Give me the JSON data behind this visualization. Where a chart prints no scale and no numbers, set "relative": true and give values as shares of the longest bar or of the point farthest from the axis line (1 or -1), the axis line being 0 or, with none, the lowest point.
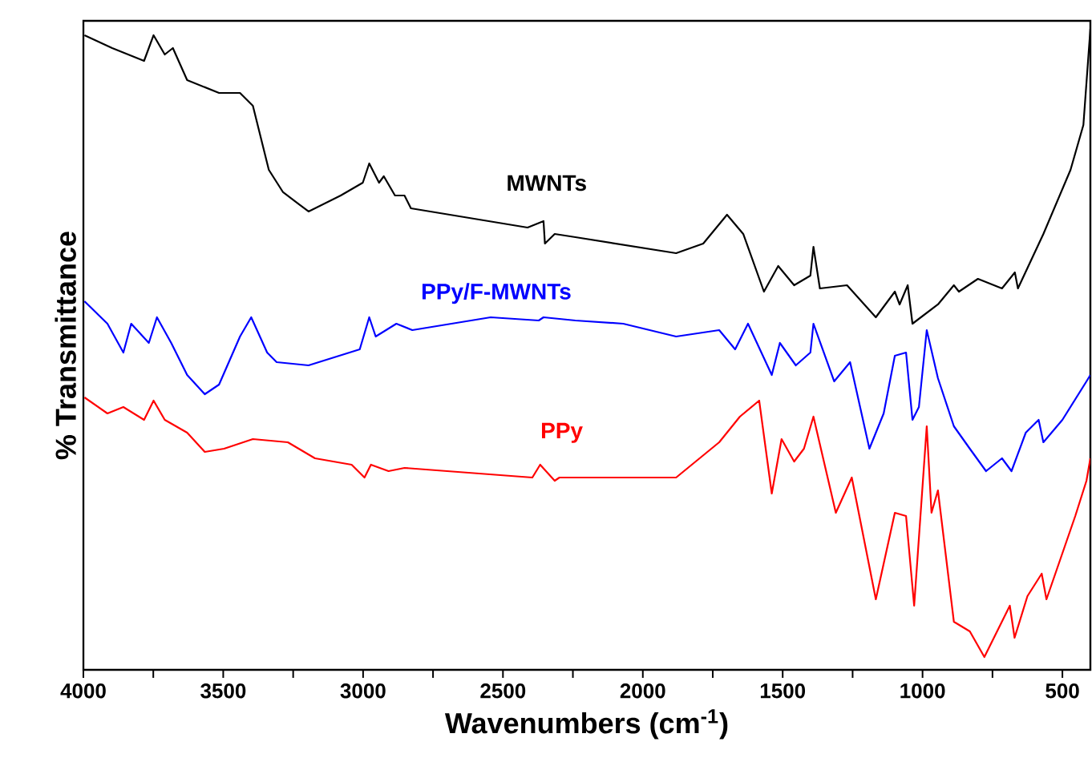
{
  "chart_data": {
    "type": "line",
    "relative": true,
    "xlabel": "Wavenumbers (cm$^{-1}$)",
    "ylabel": "% Transmittance",
    "xlim": [
      4000,
      400
    ],
    "xticks": [
      4000,
      {
        "value": 3750,
        "label": null
      },
      3500,
      {
        "value": 3250,
        "label": null
      },
      3000,
      {
        "value": 2750,
        "label": null
      },
      2500,
      {
        "value": 2250,
        "label": null
      },
      2000,
      {
        "value": 1750,
        "label": null
      },
      1500,
      {
        "value": 1250,
        "label": null
      },
      1000,
      {
        "value": 750,
        "label": null
      },
      500
    ],
    "tick_labels": "x",
    "grid": false,
    "legend": false,
    "marker": "none",
    "line_style": "solid",
    "series": [
      {
        "name": "MWNTs",
        "color": "#000000",
        "x": [
          3996,
          3897,
          3783,
          3749,
          3709,
          3680,
          3629,
          3515,
          3440,
          3394,
          3337,
          3286,
          3195,
          3080,
          3001,
          2978,
          2943,
          2926,
          2886,
          2852,
          2829,
          2412,
          2355,
          2350,
          2315,
          2241,
          1881,
          1784,
          1699,
          1641,
          1567,
          1516,
          1459,
          1401,
          1390,
          1367,
          1270,
          1167,
          1099,
          1082,
          1053,
          1036,
          945,
          888,
          870,
          802,
          716,
          670,
          659,
          568,
          471,
          425,
          400
        ],
        "values": [
          0.99,
          0.97,
          0.95,
          0.99,
          0.96,
          0.97,
          0.92,
          0.9,
          0.9,
          0.88,
          0.78,
          0.745,
          0.715,
          0.74,
          0.76,
          0.79,
          0.76,
          0.77,
          0.74,
          0.74,
          0.72,
          0.69,
          0.7,
          0.665,
          0.68,
          0.675,
          0.65,
          0.665,
          0.71,
          0.68,
          0.59,
          0.63,
          0.6,
          0.615,
          0.66,
          0.595,
          0.6,
          0.55,
          0.59,
          0.57,
          0.6,
          0.54,
          0.57,
          0.6,
          0.59,
          0.61,
          0.595,
          0.62,
          0.595,
          0.68,
          0.78,
          0.85,
          1.0
        ]
      },
      {
        "name": "PPy/F-MWNTs",
        "color": "#0000ff",
        "x": [
          3996,
          3914,
          3857,
          3829,
          3766,
          3737,
          3686,
          3629,
          3566,
          3515,
          3440,
          3400,
          3343,
          3309,
          3195,
          3012,
          2978,
          2955,
          2881,
          2824,
          2544,
          2372,
          2355,
          2241,
          2070,
          1881,
          1727,
          1670,
          1624,
          1539,
          1510,
          1453,
          1401,
          1390,
          1316,
          1259,
          1190,
          1139,
          1099,
          1059,
          1036,
          1013,
          985,
          945,
          888,
          831,
          773,
          716,
          682,
          631,
          585,
          568,
          500,
          414,
          400
        ],
        "values": [
          0.575,
          0.54,
          0.495,
          0.54,
          0.51,
          0.55,
          0.51,
          0.46,
          0.43,
          0.445,
          0.52,
          0.55,
          0.495,
          0.48,
          0.475,
          0.5,
          0.55,
          0.52,
          0.54,
          0.53,
          0.55,
          0.545,
          0.55,
          0.545,
          0.54,
          0.52,
          0.53,
          0.5,
          0.54,
          0.46,
          0.51,
          0.475,
          0.495,
          0.54,
          0.45,
          0.48,
          0.345,
          0.4,
          0.49,
          0.495,
          0.39,
          0.41,
          0.53,
          0.455,
          0.38,
          0.345,
          0.31,
          0.33,
          0.31,
          0.37,
          0.39,
          0.355,
          0.39,
          0.45,
          0.46
        ]
      },
      {
        "name": "PPy",
        "color": "#ff0000",
        "x": [
          3996,
          3914,
          3857,
          3783,
          3749,
          3709,
          3629,
          3566,
          3497,
          3394,
          3269,
          3172,
          3041,
          2995,
          2972,
          2909,
          2852,
          2395,
          2367,
          2315,
          2298,
          1881,
          1727,
          1653,
          1584,
          1539,
          1504,
          1459,
          1424,
          1390,
          1310,
          1253,
          1167,
          1099,
          1059,
          1030,
          985,
          968,
          945,
          888,
          831,
          779,
          688,
          671,
          625,
          574,
          557,
          454,
          414,
          400
        ],
        "values": [
          0.425,
          0.4,
          0.41,
          0.39,
          0.42,
          0.39,
          0.37,
          0.34,
          0.345,
          0.36,
          0.355,
          0.33,
          0.32,
          0.3,
          0.32,
          0.31,
          0.315,
          0.3,
          0.32,
          0.295,
          0.3,
          0.3,
          0.355,
          0.395,
          0.42,
          0.275,
          0.36,
          0.325,
          0.345,
          0.395,
          0.245,
          0.3,
          0.11,
          0.245,
          0.24,
          0.1,
          0.38,
          0.245,
          0.28,
          0.075,
          0.06,
          0.02,
          0.1,
          0.05,
          0.115,
          0.15,
          0.11,
          0.24,
          0.295,
          0.33
        ]
      }
    ]
  }
}
